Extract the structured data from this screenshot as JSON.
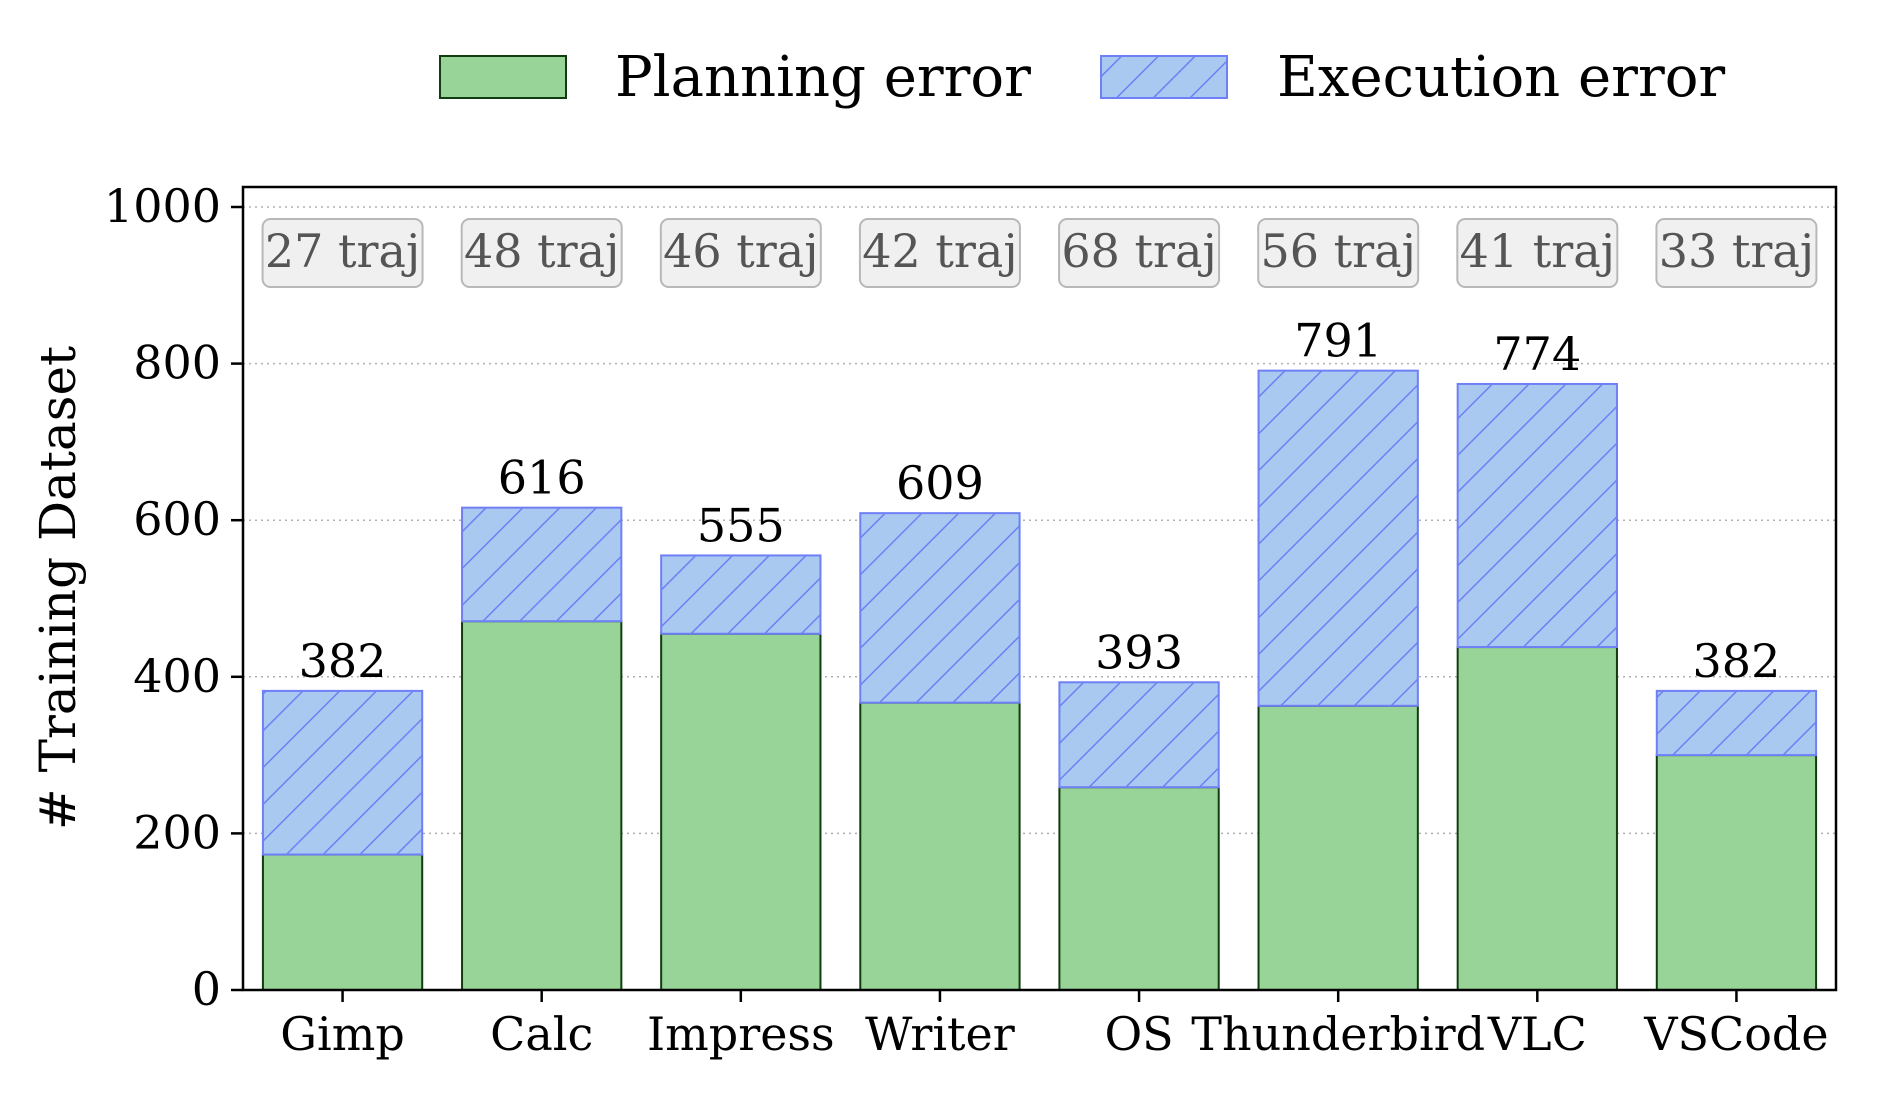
{
  "chart_data": {
    "type": "bar",
    "stacked": true,
    "ylabel": "# Training Dataset",
    "xlabel": "",
    "ylim": [
      0,
      1000
    ],
    "yticks": [
      0,
      200,
      400,
      600,
      800,
      1000
    ],
    "grid": "horizontal dotted",
    "legend_position": "top-center",
    "categories": [
      "Gimp",
      "Calc",
      "Impress",
      "Writer",
      "OS",
      "Thunderbird",
      "VLC",
      "VSCode"
    ],
    "series": [
      {
        "name": "Planning error",
        "values": [
          173,
          471,
          455,
          367,
          259,
          363,
          438,
          300
        ],
        "color": "#98d498",
        "edge": "#0f3d0f",
        "hatch": false
      },
      {
        "name": "Execution error",
        "values": [
          209,
          145,
          100,
          242,
          134,
          428,
          336,
          82
        ],
        "color": "#a9c9f0",
        "edge": "#6f7ff5",
        "hatch": true
      }
    ],
    "totals": [
      382,
      616,
      555,
      609,
      393,
      791,
      774,
      382
    ],
    "traj_annotations": [
      "27 traj",
      "48 traj",
      "46 traj",
      "42 traj",
      "68 traj",
      "56 traj",
      "41 traj",
      "33 traj"
    ]
  }
}
